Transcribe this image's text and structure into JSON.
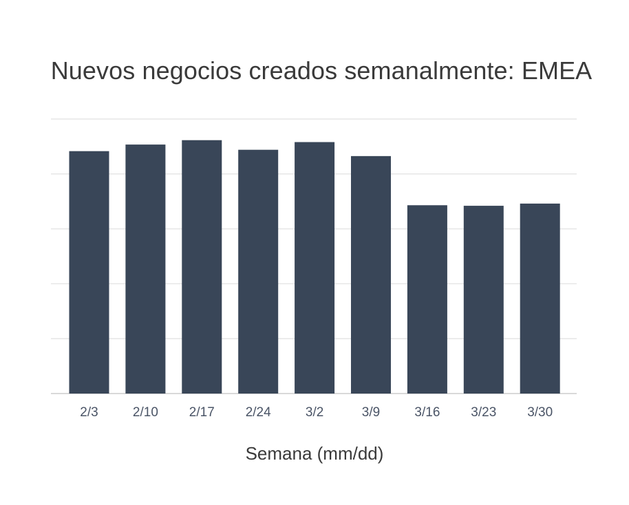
{
  "chart_data": {
    "type": "bar",
    "title": "Nuevos negocios creados semanalmente: EMEA",
    "xlabel": "Semana (mm/dd)",
    "ylabel": "",
    "categories": [
      "2/3",
      "2/10",
      "2/17",
      "2/24",
      "3/2",
      "3/9",
      "3/16",
      "3/23",
      "3/30"
    ],
    "values": [
      88.3,
      90.7,
      92.3,
      88.8,
      91.6,
      86.5,
      68.6,
      68.4,
      69.2
    ],
    "ylim": [
      0,
      100
    ],
    "grid": true,
    "y_tick_labels_shown": false,
    "legend": "none",
    "colors": {
      "bar": "#394658",
      "grid": "#e6e6e6",
      "tick_text": "#4a5466",
      "title_text": "#3a3a3a"
    }
  }
}
